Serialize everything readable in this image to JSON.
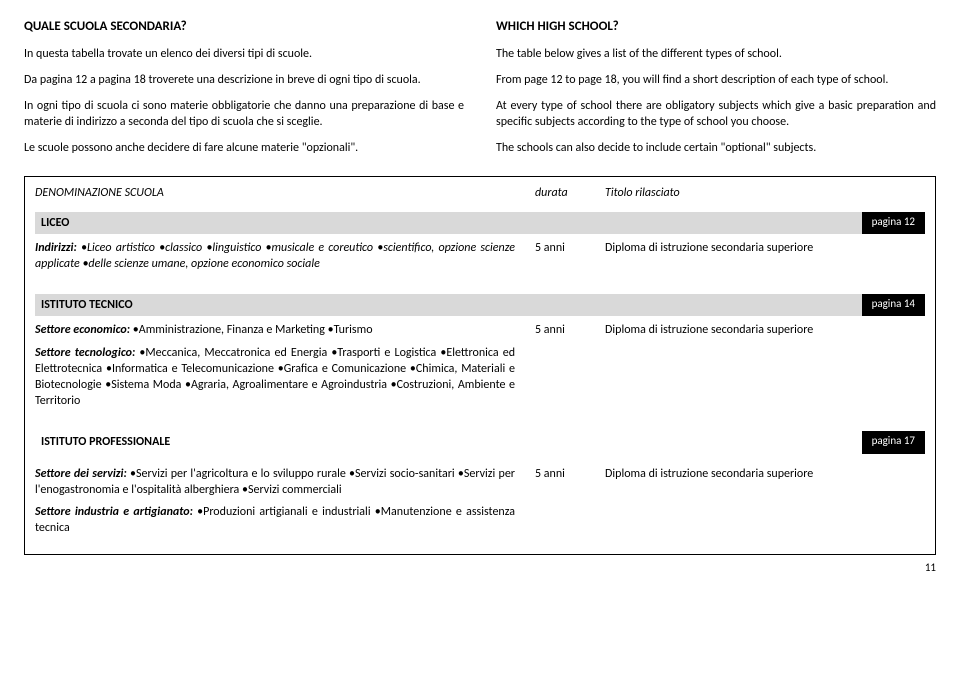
{
  "left": {
    "title": "QUALE SCUOLA SECONDARIA?",
    "p1": "In questa tabella trovate un elenco dei diversi tipi di scuole.",
    "p2": "Da pagina 12 a pagina 18 troverete una descrizione in breve di ogni tipo di scuola.",
    "p3": "In ogni tipo di scuola ci sono materie obbligatorie che danno una preparazione di base e materie di indirizzo a seconda del tipo di scuola che si sceglie.",
    "p4": "Le scuole possono anche decidere di fare alcune materie \"opzionali\"."
  },
  "right": {
    "title": "WHICH HIGH SCHOOL?",
    "p1": "The table below gives a list of the different types of school.",
    "p2": "From page 12 to page 18, you will find a short description of each type of school.",
    "p3": "At every type of school there are obligatory subjects which give a basic preparation and specific subjects according to the type of school you choose.",
    "p4": "The schools can also decide to include certain \"optional\" subjects."
  },
  "table": {
    "head": {
      "name": "DENOMINAZIONE  SCUOLA",
      "durata": "durata",
      "titolo": "Titolo rilasciato"
    },
    "liceo": {
      "label": "LICEO",
      "page": "pagina  12",
      "indirizzi_label": "Indirizzi:",
      "indirizzi": " •Liceo artistico •classico •linguistico •musicale e coreutico •scientifico, opzione scienze applicate •delle scienze umane, opzione economico sociale",
      "durata": "5 anni",
      "titolo": "Diploma di istruzione secondaria superiore"
    },
    "tecnico": {
      "label": "ISTITUTO  TECNICO",
      "page": "pagina 14",
      "eco_label": "Settore economico:",
      "eco": " •Amministrazione, Finanza e Marketing •Turismo",
      "tec_label": "Settore tecnologico:",
      "tec": " •Meccanica, Meccatronica ed Energia •Trasporti e Logistica •Elettronica ed Elettrotecnica •Informatica e Telecomunicazione •Grafica e Comunicazione •Chimica, Materiali e Biotecnologie •Sistema Moda •Agraria, Agroalimentare e Agroindustria •Costruzioni, Ambiente e Territorio",
      "durata": "5 anni",
      "titolo": "Diploma di istruzione secondaria superiore"
    },
    "prof": {
      "label": "ISTITUTO  PROFESSIONALE",
      "page": "pagina 17",
      "serv_label": "Settore dei servizi:",
      "serv": " •Servizi per l'agricoltura e lo sviluppo rurale •Servizi socio-sanitari •Servizi per l'enogastronomia e l'ospitalità alberghiera •Servizi commerciali",
      "ind_label": "Settore industria e artigianato:",
      "ind": " •Produzioni artigianali e industriali •Manutenzione e assistenza tecnica",
      "durata": "5 anni",
      "titolo": "Diploma di istruzione secondaria superiore"
    }
  },
  "pagenum": "11"
}
